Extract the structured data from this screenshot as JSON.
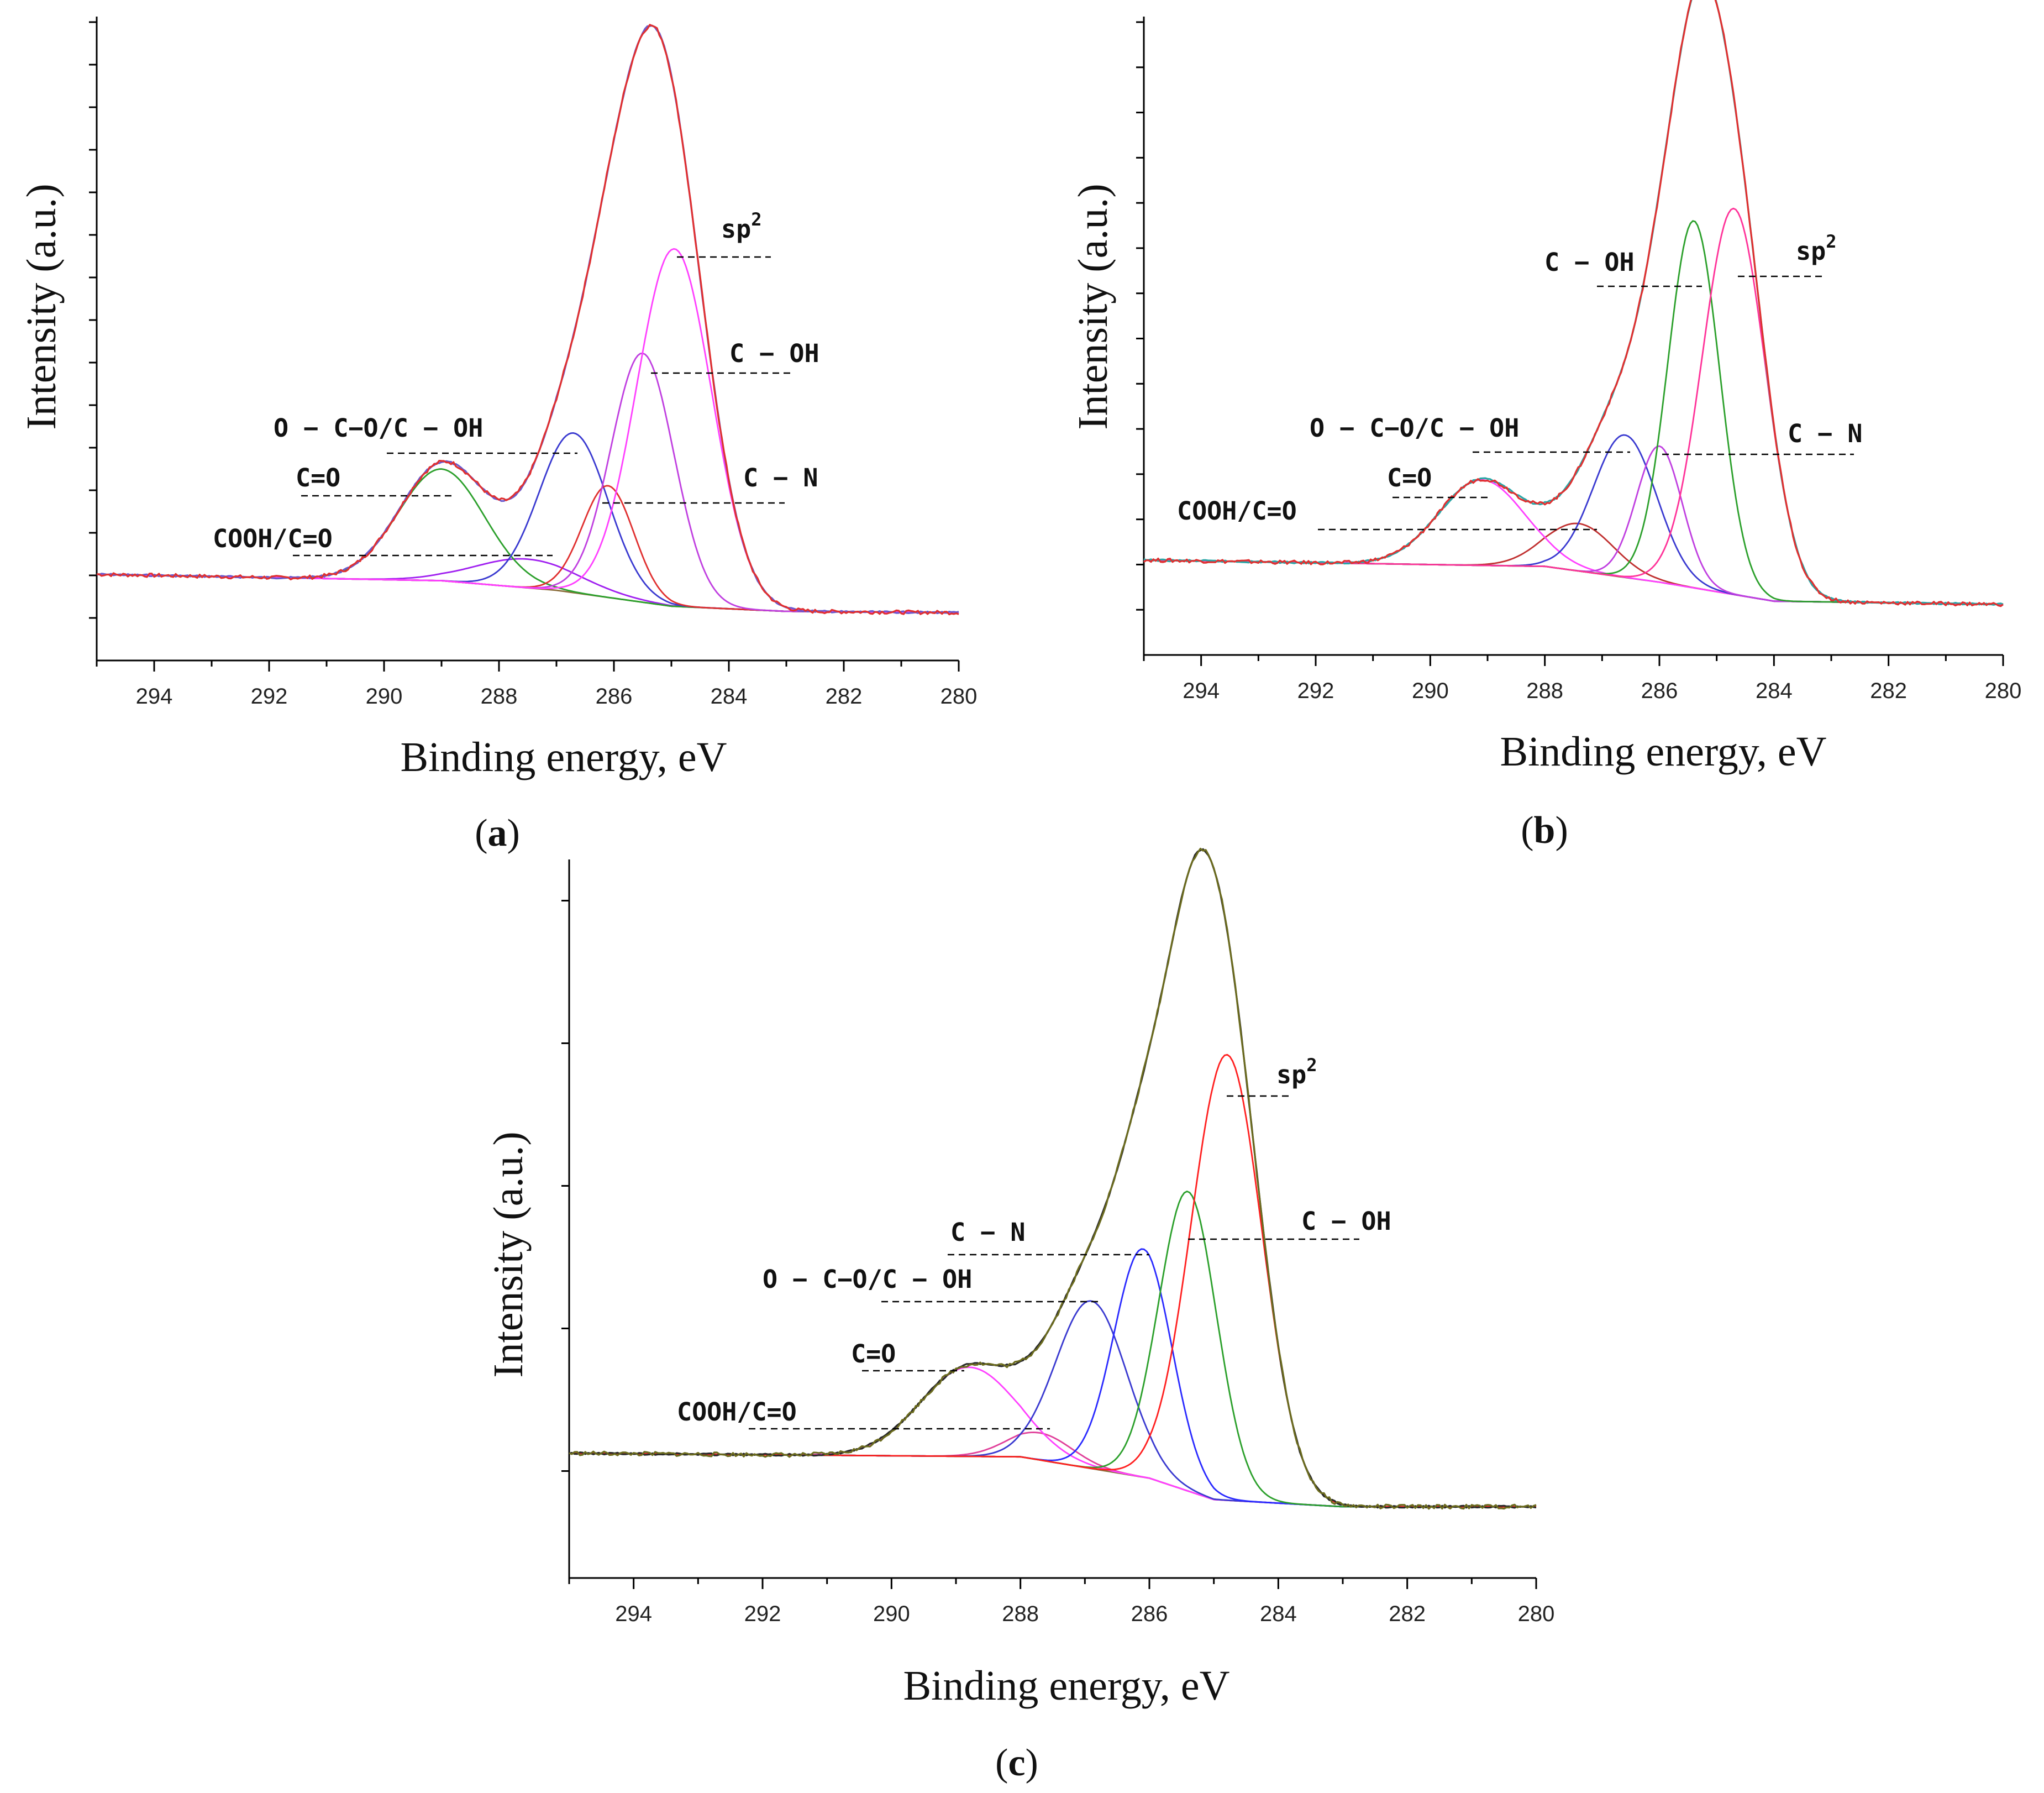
{
  "figure": {
    "xlabel": "Binding energy, eV",
    "ylabel": "Intensity (a.u.)"
  },
  "chart_data": [
    {
      "type": "line",
      "panel": "a",
      "title": "",
      "xlabel": "Binding energy, eV",
      "ylabel": "Intensity (a.u.)",
      "xlim": [
        295,
        280
      ],
      "ylim": [
        0,
        100
      ],
      "x_ticks": [
        294,
        292,
        290,
        288,
        286,
        284,
        282,
        280
      ],
      "baseline": [
        {
          "x": 295,
          "y": 13.5
        },
        {
          "x": 289,
          "y": 12.5
        },
        {
          "x": 287,
          "y": 11.0
        },
        {
          "x": 285,
          "y": 8.5
        },
        {
          "x": 283,
          "y": 7.7
        },
        {
          "x": 280,
          "y": 7.5
        }
      ],
      "series": [
        {
          "name": "COOH/C=O",
          "center": 287.5,
          "height": 4.5,
          "width": 0.9,
          "color": "#a020f0"
        },
        {
          "name": "C=O",
          "center": 289.0,
          "height": 17.5,
          "width": 0.75,
          "color": "#2ca02c"
        },
        {
          "name": "O − C−O/C − OH",
          "center": 286.7,
          "height": 25.0,
          "width": 0.6,
          "color": "#3a3ad0"
        },
        {
          "name": "C − N",
          "center": 286.1,
          "height": 17.5,
          "width": 0.45,
          "color": "#e03030"
        },
        {
          "name": "C − OH",
          "center": 285.5,
          "height": 39.0,
          "width": 0.55,
          "color": "#c040e0"
        },
        {
          "name": "sp2",
          "center": 284.95,
          "height": 56.0,
          "width": 0.65,
          "color": "#ff40ff"
        }
      ],
      "annotations": [
        {
          "text": "sp",
          "sup": "2",
          "peak": "sp2"
        },
        {
          "text": "C − OH",
          "peak": "C − OH"
        },
        {
          "text": "C − N",
          "peak": "C − N"
        },
        {
          "text": "O − C−O/C − OH",
          "peak": "O − C−O/C − OH"
        },
        {
          "text": "C=O",
          "peak": "C=O"
        },
        {
          "text": "COOH/C=O",
          "peak": "COOH/C=O"
        }
      ],
      "caption": "a"
    },
    {
      "type": "line",
      "panel": "b",
      "title": "",
      "xlabel": "Binding energy, eV",
      "ylabel": "Intensity (a.u.)",
      "xlim": [
        295,
        280
      ],
      "ylim": [
        0,
        100
      ],
      "x_ticks": [
        294,
        292,
        290,
        288,
        286,
        284,
        282,
        280
      ],
      "baseline": [
        {
          "x": 295,
          "y": 15.0
        },
        {
          "x": 288,
          "y": 14.0
        },
        {
          "x": 286,
          "y": 11.5
        },
        {
          "x": 284,
          "y": 8.5
        },
        {
          "x": 280,
          "y": 8.0
        }
      ],
      "series": [
        {
          "name": "COOH/C=O",
          "center": 287.4,
          "height": 7.5,
          "width": 0.6,
          "color": "#c03030"
        },
        {
          "name": "C=O",
          "center": 289.1,
          "height": 13.5,
          "width": 0.75,
          "color": "#ff40ff"
        },
        {
          "name": "O − C−O/C − OH",
          "center": 286.6,
          "height": 22.5,
          "width": 0.55,
          "color": "#3a3ad0"
        },
        {
          "name": "C − N",
          "center": 286.0,
          "height": 21.5,
          "width": 0.4,
          "color": "#c040e0"
        },
        {
          "name": "C − OH",
          "center": 285.4,
          "height": 58.0,
          "width": 0.45,
          "color": "#2ca02c"
        },
        {
          "name": "sp2",
          "center": 284.7,
          "height": 61.0,
          "width": 0.55,
          "color": "#ff3399"
        }
      ],
      "annotations": [
        {
          "text": "sp",
          "sup": "2",
          "peak": "sp2"
        },
        {
          "text": "C − OH",
          "peak": "C − OH"
        },
        {
          "text": "C − N",
          "peak": "C − N"
        },
        {
          "text": "O − C−O/C − OH",
          "peak": "O − C−O/C − OH"
        },
        {
          "text": "C=O",
          "peak": "C=O"
        },
        {
          "text": "COOH/C=O",
          "peak": "COOH/C=O"
        }
      ],
      "caption": "b"
    },
    {
      "type": "line",
      "panel": "c",
      "title": "",
      "xlabel": "Binding energy, eV",
      "ylabel": "Intensity (a.u.)",
      "xlim": [
        295,
        280
      ],
      "ylim": [
        0,
        100
      ],
      "x_ticks": [
        294,
        292,
        290,
        288,
        286,
        284,
        282,
        280
      ],
      "baseline": [
        {
          "x": 295,
          "y": 17.5
        },
        {
          "x": 288,
          "y": 17.0
        },
        {
          "x": 286,
          "y": 14.0
        },
        {
          "x": 285,
          "y": 11.0
        },
        {
          "x": 283,
          "y": 10.0
        },
        {
          "x": 280,
          "y": 10.0
        }
      ],
      "series": [
        {
          "name": "COOH/C=O",
          "center": 287.7,
          "height": 3.8,
          "width": 0.5,
          "color": "#e0409a"
        },
        {
          "name": "C=O",
          "center": 288.8,
          "height": 12.5,
          "width": 0.75,
          "color": "#ff40ff"
        },
        {
          "name": "O − C−O/C − OH",
          "center": 286.9,
          "height": 23.5,
          "width": 0.55,
          "color": "#3a3ad0"
        },
        {
          "name": "C − N",
          "center": 286.1,
          "height": 32.0,
          "width": 0.45,
          "color": "#2a2aff"
        },
        {
          "name": "C − OH",
          "center": 285.4,
          "height": 42.0,
          "width": 0.45,
          "color": "#2ca02c"
        },
        {
          "name": "sp2",
          "center": 284.8,
          "height": 62.5,
          "width": 0.55,
          "color": "#ff2020"
        }
      ],
      "annotations": [
        {
          "text": "sp",
          "sup": "2",
          "peak": "sp2"
        },
        {
          "text": "C − OH",
          "peak": "C − OH"
        },
        {
          "text": "C − N",
          "peak": "C − N"
        },
        {
          "text": "O − C−O/C − OH",
          "peak": "O − C−O/C − OH"
        },
        {
          "text": "C=O",
          "peak": "C=O"
        },
        {
          "text": "COOH/C=O",
          "peak": "COOH/C=O"
        }
      ],
      "caption": "c"
    }
  ]
}
